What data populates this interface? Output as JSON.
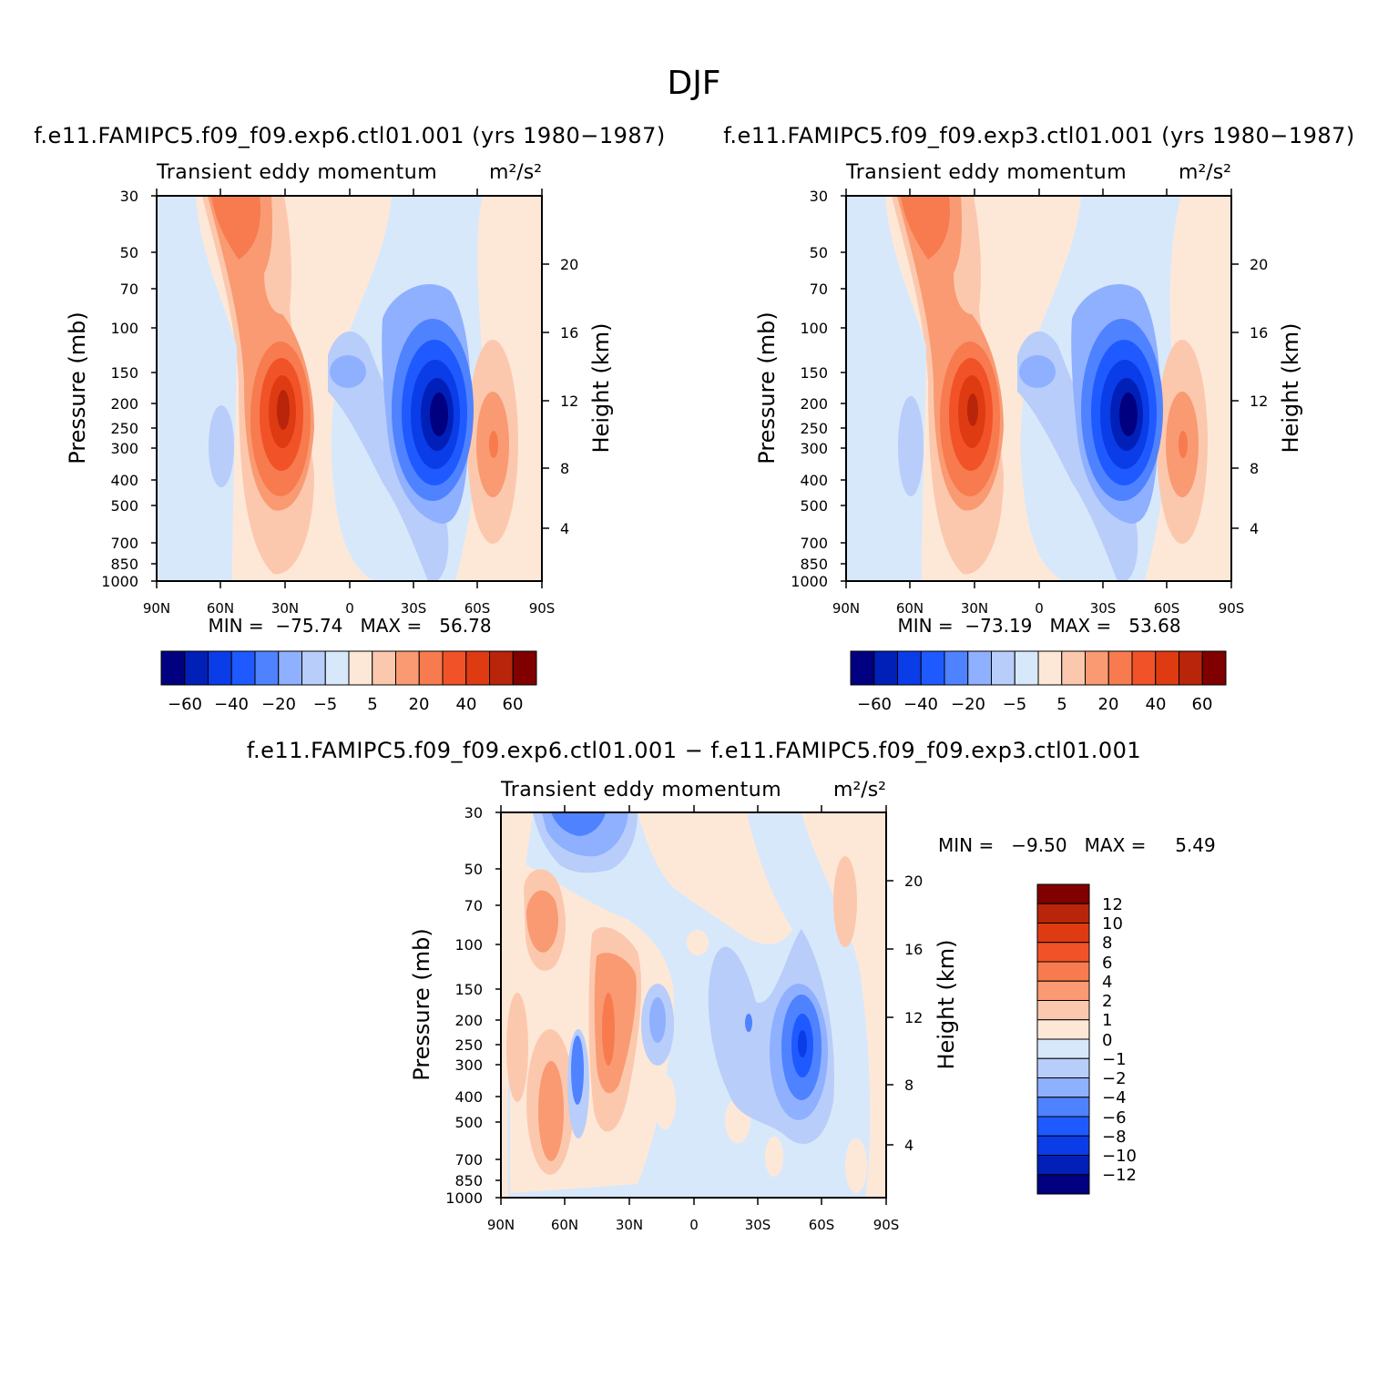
{
  "figure": {
    "title": "DJF"
  },
  "color_levels": {
    "main": {
      "colors": [
        "#000080",
        "#0020b8",
        "#0a3ce8",
        "#1e5aff",
        "#4f82ff",
        "#8fb0ff",
        "#b8cdfa",
        "#d8e8fb",
        "#fde8d8",
        "#fcc8ad",
        "#f99a73",
        "#f77b4e",
        "#f25228",
        "#de3b12",
        "#b8250a",
        "#800000"
      ],
      "tick_labels": [
        "−60",
        "−40",
        "−20",
        "−5",
        "5",
        "20",
        "40",
        "60"
      ]
    },
    "diff": {
      "colors": [
        "#000080",
        "#0020b8",
        "#0a3ce8",
        "#1e5aff",
        "#4f82ff",
        "#8fb0ff",
        "#b8cdfa",
        "#d8e8fb",
        "#fde8d8",
        "#fcc8ad",
        "#f99a73",
        "#f77b4e",
        "#f25228",
        "#de3b12",
        "#b8250a",
        "#800000"
      ],
      "tick_labels": [
        "12",
        "10",
        "8",
        "6",
        "4",
        "2",
        "1",
        "0",
        "−1",
        "−2",
        "−4",
        "−6",
        "−8",
        "−10",
        "−12"
      ]
    }
  },
  "chart_data": [
    {
      "type": "heatmap",
      "panel": "a",
      "title": "f.e11.FAMIPC5.f09_f09.exp6.ctl01.001 (yrs 1980−1987)",
      "subtitle_left": "Transient eddy momentum",
      "subtitle_right": "m²/s²",
      "min_max_text": "MIN =  −75.74   MAX =   56.78",
      "stats": {
        "min": -75.74,
        "max": 56.78
      },
      "xlabel": "",
      "ylabel": "Pressure (mb)",
      "y2label": "Height (km)",
      "xlim": [
        90,
        -90
      ],
      "ylim": [
        1000,
        30
      ],
      "x_ticks": [
        "90N",
        "60N",
        "30N",
        "0",
        "30S",
        "60S",
        "90S"
      ],
      "y_ticks": [
        "30",
        "50",
        "70",
        "100",
        "150",
        "200",
        "250",
        "300",
        "400",
        "500",
        "700",
        "850",
        "1000"
      ],
      "y2_ticks": [
        "20",
        "16",
        "12",
        "8",
        "4"
      ],
      "features": [
        {
          "kind": "positive",
          "lat": 30,
          "p": 230,
          "peak": 56.78,
          "desc": "subtropical NH maximum"
        },
        {
          "kind": "positive",
          "lat": 58,
          "p": 35,
          "peak": 28,
          "desc": "upper stratosphere NH"
        },
        {
          "kind": "negative",
          "lat": -42,
          "p": 230,
          "peak": -75.74,
          "desc": "SH midlatitude minimum"
        },
        {
          "kind": "negative",
          "lat": -5,
          "p": 145,
          "peak": -12,
          "desc": "equatorial upper trop"
        },
        {
          "kind": "negative",
          "lat": 63,
          "p": 320,
          "peak": -10,
          "desc": "NH high-latitude"
        },
        {
          "kind": "positive",
          "lat": -70,
          "p": 300,
          "peak": 27,
          "desc": "SH high-latitude"
        }
      ]
    },
    {
      "type": "heatmap",
      "panel": "b",
      "title": "f.e11.FAMIPC5.f09_f09.exp3.ctl01.001 (yrs 1980−1987)",
      "subtitle_left": "Transient eddy momentum",
      "subtitle_right": "m²/s²",
      "min_max_text": "MIN =  −73.19   MAX =   53.68",
      "stats": {
        "min": -73.19,
        "max": 53.68
      },
      "xlabel": "",
      "ylabel": "Pressure (mb)",
      "y2label": "Height (km)",
      "xlim": [
        90,
        -90
      ],
      "ylim": [
        1000,
        30
      ],
      "x_ticks": [
        "90N",
        "60N",
        "30N",
        "0",
        "30S",
        "60S",
        "90S"
      ],
      "y_ticks": [
        "30",
        "50",
        "70",
        "100",
        "150",
        "200",
        "250",
        "300",
        "400",
        "500",
        "700",
        "850",
        "1000"
      ],
      "y2_ticks": [
        "20",
        "16",
        "12",
        "8",
        "4"
      ],
      "features": [
        {
          "kind": "positive",
          "lat": 30,
          "p": 230,
          "peak": 53.68,
          "desc": "subtropical NH maximum"
        },
        {
          "kind": "positive",
          "lat": 58,
          "p": 35,
          "peak": 30,
          "desc": "upper stratosphere NH"
        },
        {
          "kind": "negative",
          "lat": -42,
          "p": 230,
          "peak": -73.19,
          "desc": "SH midlatitude minimum"
        },
        {
          "kind": "negative",
          "lat": -5,
          "p": 145,
          "peak": -12,
          "desc": "equatorial upper trop"
        },
        {
          "kind": "negative",
          "lat": 63,
          "p": 320,
          "peak": -10,
          "desc": "NH high-latitude"
        },
        {
          "kind": "positive",
          "lat": -70,
          "p": 300,
          "peak": 25,
          "desc": "SH high-latitude"
        }
      ]
    },
    {
      "type": "heatmap",
      "panel": "diff",
      "title": "f.e11.FAMIPC5.f09_f09.exp6.ctl01.001 − f.e11.FAMIPC5.f09_f09.exp3.ctl01.001",
      "subtitle_left": "Transient eddy momentum",
      "subtitle_right": "m²/s²",
      "min_max_text": "MIN =   −9.50   MAX =     5.49",
      "stats": {
        "min": -9.5,
        "max": 5.49
      },
      "xlabel": "",
      "ylabel": "Pressure (mb)",
      "y2label": "Height (km)",
      "xlim": [
        90,
        -90
      ],
      "ylim": [
        1000,
        30
      ],
      "x_ticks": [
        "90N",
        "60N",
        "30N",
        "0",
        "30S",
        "60S",
        "90S"
      ],
      "y_ticks": [
        "30",
        "50",
        "70",
        "100",
        "150",
        "200",
        "250",
        "300",
        "400",
        "500",
        "700",
        "850",
        "1000"
      ],
      "y2_ticks": [
        "20",
        "16",
        "12",
        "8",
        "4"
      ],
      "features": [
        {
          "kind": "negative",
          "lat": 50,
          "p": 32,
          "peak": -7,
          "desc": "upper NH"
        },
        {
          "kind": "positive",
          "lat": 72,
          "p": 75,
          "peak": 4,
          "desc": "NH polar stratosphere"
        },
        {
          "kind": "positive",
          "lat": 37,
          "p": 190,
          "peak": 5.49,
          "desc": "NH subtropics"
        },
        {
          "kind": "positive",
          "lat": 65,
          "p": 400,
          "peak": 4,
          "desc": "NH high-lat troposphere"
        },
        {
          "kind": "negative",
          "lat": 52,
          "p": 280,
          "peak": -6,
          "desc": "NH midlat"
        },
        {
          "kind": "negative",
          "lat": 18,
          "p": 200,
          "peak": -4,
          "desc": "NH tropics"
        },
        {
          "kind": "negative",
          "lat": -50,
          "p": 250,
          "peak": -9.5,
          "desc": "SH midlatitude minimum"
        },
        {
          "kind": "positive",
          "lat": -75,
          "p": 80,
          "peak": 3,
          "desc": "SH polar stratosphere"
        }
      ]
    }
  ]
}
